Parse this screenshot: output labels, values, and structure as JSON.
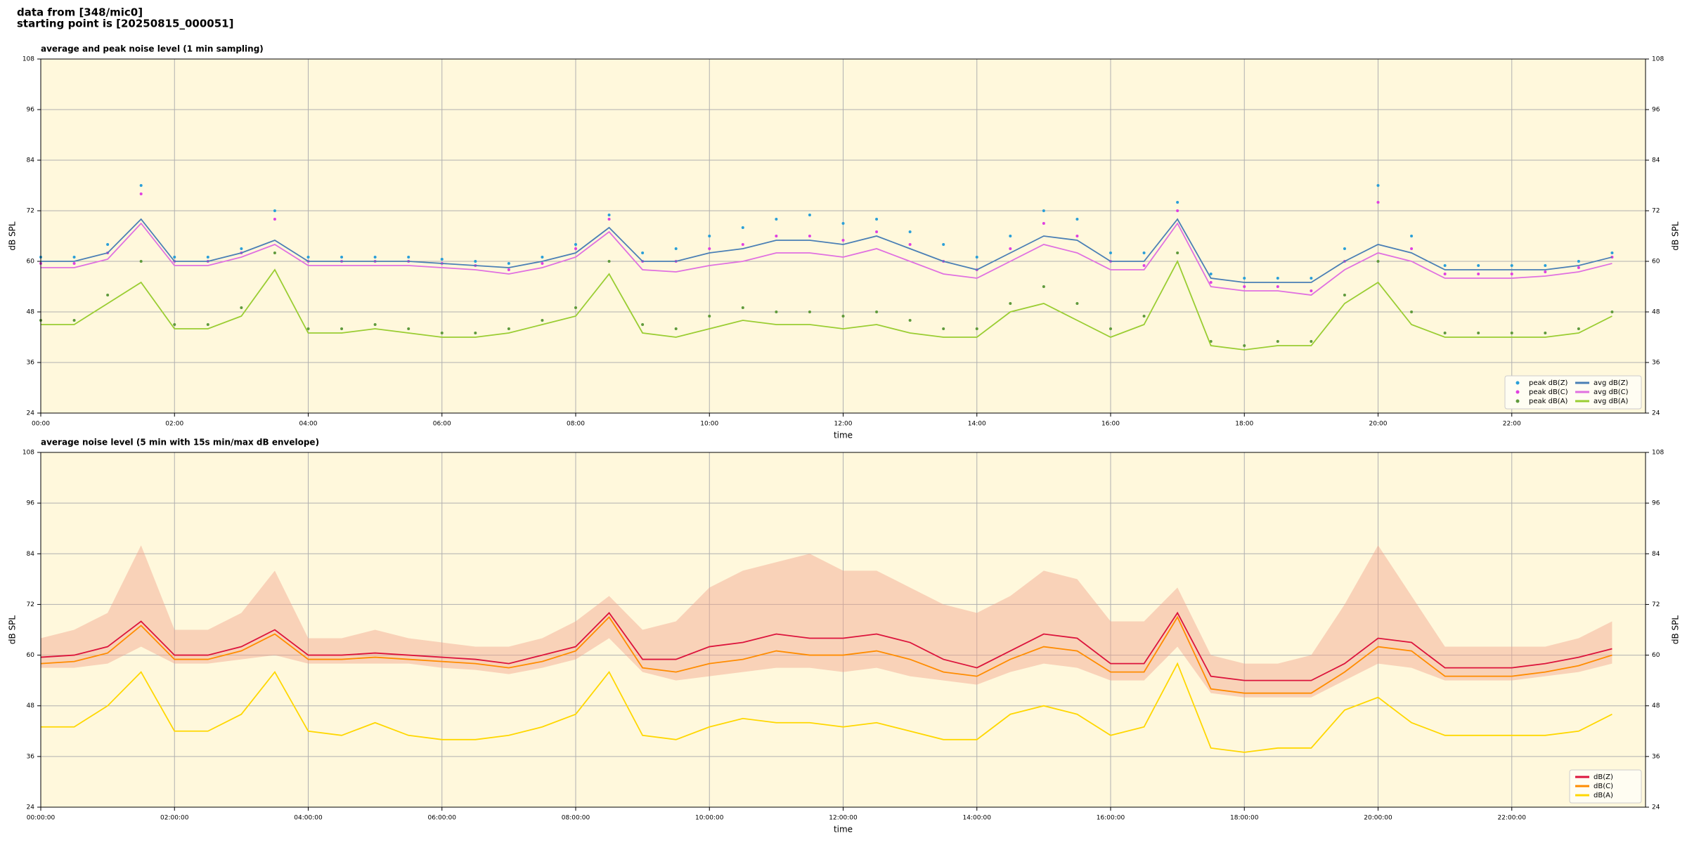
{
  "header": {
    "source": "data from [348/mic0]",
    "start": "starting point is [20250815_000051]"
  },
  "chart_data": [
    {
      "type": "line",
      "title": "average and peak noise level (1 min sampling)",
      "xlabel": "time",
      "ylabel": "dB SPL",
      "x": [
        0,
        0.5,
        1,
        1.5,
        2,
        2.5,
        3,
        3.5,
        4,
        4.5,
        5,
        5.5,
        6,
        6.5,
        7,
        7.5,
        8,
        8.5,
        9,
        9.5,
        10,
        10.5,
        11,
        11.5,
        12,
        12.5,
        13,
        13.5,
        14,
        14.5,
        15,
        15.5,
        16,
        16.5,
        17,
        17.5,
        18,
        18.5,
        19,
        19.5,
        20,
        20.5,
        21,
        21.5,
        22,
        22.5,
        23,
        23.5
      ],
      "xlim": [
        0,
        24
      ],
      "xticks": [
        {
          "value": 0,
          "label": "00:00"
        },
        {
          "value": 2,
          "label": "02:00"
        },
        {
          "value": 4,
          "label": "04:00"
        },
        {
          "value": 6,
          "label": "06:00"
        },
        {
          "value": 8,
          "label": "08:00"
        },
        {
          "value": 10,
          "label": "10:00"
        },
        {
          "value": 12,
          "label": "12:00"
        },
        {
          "value": 14,
          "label": "14:00"
        },
        {
          "value": 16,
          "label": "16:00"
        },
        {
          "value": 18,
          "label": "18:00"
        },
        {
          "value": 20,
          "label": "20:00"
        },
        {
          "value": 22,
          "label": "22:00"
        }
      ],
      "ylim": [
        24,
        108
      ],
      "yticks": [
        24,
        36,
        48,
        60,
        72,
        84,
        96,
        108
      ],
      "grid": true,
      "legend": "lower right",
      "legend_columns": 2,
      "series": [
        {
          "name": "peak dB(Z)",
          "style": "dots",
          "color": "#2a9fd8",
          "values": [
            61,
            61,
            64,
            78,
            61,
            61,
            63,
            72,
            61,
            61,
            61,
            61,
            60.5,
            60,
            59.5,
            61,
            64,
            71,
            62,
            63,
            66,
            68,
            70,
            71,
            69,
            70,
            67,
            64,
            61,
            66,
            72,
            70,
            62,
            62,
            74,
            57,
            56,
            56,
            56,
            63,
            78,
            66,
            59,
            59,
            59,
            59,
            60,
            62
          ]
        },
        {
          "name": "peak dB(C)",
          "style": "dots",
          "color": "#e040e0",
          "values": [
            59.5,
            59.5,
            62,
            76,
            60,
            60,
            62,
            70,
            60,
            60,
            60,
            60,
            59.5,
            59,
            58,
            59.5,
            63,
            70,
            60,
            60,
            63,
            64,
            66,
            66,
            65,
            67,
            64,
            60,
            58,
            63,
            69,
            66,
            60,
            59,
            72,
            55,
            54,
            54,
            53,
            60,
            74,
            63,
            57,
            57,
            57,
            57.5,
            58.5,
            61
          ]
        },
        {
          "name": "peak dB(A)",
          "style": "dots",
          "color": "#5f9a3c",
          "values": [
            46,
            46,
            52,
            60,
            45,
            45,
            49,
            62,
            44,
            44,
            45,
            44,
            43,
            43,
            44,
            46,
            49,
            60,
            45,
            44,
            47,
            49,
            48,
            48,
            47,
            48,
            46,
            44,
            44,
            50,
            54,
            50,
            44,
            47,
            62,
            41,
            40,
            41,
            41,
            52,
            60,
            48,
            43,
            43,
            43,
            43,
            44,
            48
          ]
        },
        {
          "name": "avg dB(Z)",
          "style": "line",
          "color": "#4a7fb5",
          "values": [
            60,
            60,
            62,
            70,
            60,
            60,
            62,
            65,
            60,
            60,
            60,
            60,
            59.5,
            59,
            58.5,
            60,
            62,
            68,
            60,
            60,
            62,
            63,
            65,
            65,
            64,
            66,
            63,
            60,
            58,
            62,
            66,
            65,
            60,
            60,
            70,
            56,
            55,
            55,
            55,
            60,
            64,
            62,
            58,
            58,
            58,
            58,
            59,
            61
          ]
        },
        {
          "name": "avg dB(C)",
          "style": "line",
          "color": "#e070e0",
          "values": [
            58.5,
            58.5,
            60.5,
            69,
            59,
            59,
            61,
            64,
            59,
            59,
            59,
            59,
            58.5,
            58,
            57,
            58.5,
            61,
            67,
            58,
            57.5,
            59,
            60,
            62,
            62,
            61,
            63,
            60,
            57,
            56,
            60,
            64,
            62,
            58,
            58,
            69,
            54,
            53,
            53,
            52,
            58,
            62,
            60,
            56,
            56,
            56,
            56.5,
            57.5,
            59.5
          ]
        },
        {
          "name": "avg dB(A)",
          "style": "line",
          "color": "#9acd32",
          "values": [
            45,
            45,
            50,
            55,
            44,
            44,
            47,
            58,
            43,
            43,
            44,
            43,
            42,
            42,
            43,
            45,
            47,
            57,
            43,
            42,
            44,
            46,
            45,
            45,
            44,
            45,
            43,
            42,
            42,
            48,
            50,
            46,
            42,
            45,
            60,
            40,
            39,
            40,
            40,
            50,
            55,
            45,
            42,
            42,
            42,
            42,
            43,
            47
          ]
        }
      ]
    },
    {
      "type": "line",
      "title": "average noise level (5 min with 15s min/max dB envelope)",
      "xlabel": "time",
      "ylabel": "dB SPL",
      "x": [
        0,
        0.5,
        1,
        1.5,
        2,
        2.5,
        3,
        3.5,
        4,
        4.5,
        5,
        5.5,
        6,
        6.5,
        7,
        7.5,
        8,
        8.5,
        9,
        9.5,
        10,
        10.5,
        11,
        11.5,
        12,
        12.5,
        13,
        13.5,
        14,
        14.5,
        15,
        15.5,
        16,
        16.5,
        17,
        17.5,
        18,
        18.5,
        19,
        19.5,
        20,
        20.5,
        21,
        21.5,
        22,
        22.5,
        23,
        23.5
      ],
      "xlim": [
        0,
        24
      ],
      "xticks": [
        {
          "value": 0,
          "label": "00:00:00"
        },
        {
          "value": 2,
          "label": "02:00:00"
        },
        {
          "value": 4,
          "label": "04:00:00"
        },
        {
          "value": 6,
          "label": "06:00:00"
        },
        {
          "value": 8,
          "label": "08:00:00"
        },
        {
          "value": 10,
          "label": "10:00:00"
        },
        {
          "value": 12,
          "label": "12:00:00"
        },
        {
          "value": 14,
          "label": "14:00:00"
        },
        {
          "value": 16,
          "label": "16:00:00"
        },
        {
          "value": 18,
          "label": "18:00:00"
        },
        {
          "value": 20,
          "label": "20:00:00"
        },
        {
          "value": 22,
          "label": "22:00:00"
        }
      ],
      "ylim": [
        24,
        108
      ],
      "yticks": [
        24,
        36,
        48,
        60,
        72,
        84,
        96,
        108
      ],
      "grid": true,
      "legend": "lower right",
      "legend_columns": 1,
      "envelope": {
        "color": "#f2a58c",
        "max": [
          64,
          66,
          70,
          86,
          66,
          66,
          70,
          80,
          64,
          64,
          66,
          64,
          63,
          62,
          62,
          64,
          68,
          74,
          66,
          68,
          76,
          80,
          82,
          84,
          80,
          80,
          76,
          72,
          70,
          74,
          80,
          78,
          68,
          68,
          76,
          60,
          58,
          58,
          60,
          72,
          86,
          74,
          62,
          62,
          62,
          62,
          64,
          68
        ],
        "min": [
          57,
          57,
          58,
          62,
          58,
          58,
          59,
          60,
          58,
          58,
          58,
          58,
          57,
          56.5,
          55.5,
          57,
          59,
          64,
          56,
          54,
          55,
          56,
          57,
          57,
          56,
          57,
          55,
          54,
          53,
          56,
          58,
          57,
          54,
          54,
          62,
          51,
          50,
          50,
          50,
          54,
          58,
          57,
          54,
          54,
          54,
          55,
          56,
          58
        ]
      },
      "series": [
        {
          "name": "dB(Z)",
          "style": "line",
          "color": "#dc143c",
          "values": [
            59.5,
            60,
            62,
            68,
            60,
            60,
            62,
            66,
            60,
            60,
            60.5,
            60,
            59.5,
            59,
            58,
            60,
            62,
            70,
            59,
            59,
            62,
            63,
            65,
            64,
            64,
            65,
            63,
            59,
            57,
            61,
            65,
            64,
            58,
            58,
            70,
            55,
            54,
            54,
            54,
            58,
            64,
            63,
            57,
            57,
            57,
            58,
            59.5,
            61.5
          ]
        },
        {
          "name": "dB(C)",
          "style": "line",
          "color": "#ff8c00",
          "values": [
            58,
            58.5,
            60.5,
            67,
            59,
            59,
            61,
            65,
            59,
            59,
            59.5,
            59,
            58.5,
            58,
            57,
            58.5,
            61,
            69,
            57,
            56,
            58,
            59,
            61,
            60,
            60,
            61,
            59,
            56,
            55,
            59,
            62,
            61,
            56,
            56,
            69,
            52,
            51,
            51,
            51,
            56,
            62,
            61,
            55,
            55,
            55,
            56,
            57.5,
            60
          ]
        },
        {
          "name": "dB(A)",
          "style": "line",
          "color": "#ffd700",
          "values": [
            43,
            43,
            48,
            56,
            42,
            42,
            46,
            56,
            42,
            41,
            44,
            41,
            40,
            40,
            41,
            43,
            46,
            56,
            41,
            40,
            43,
            45,
            44,
            44,
            43,
            44,
            42,
            40,
            40,
            46,
            48,
            46,
            41,
            43,
            58,
            38,
            37,
            38,
            38,
            47,
            50,
            44,
            41,
            41,
            41,
            41,
            42,
            46
          ]
        }
      ]
    }
  ]
}
